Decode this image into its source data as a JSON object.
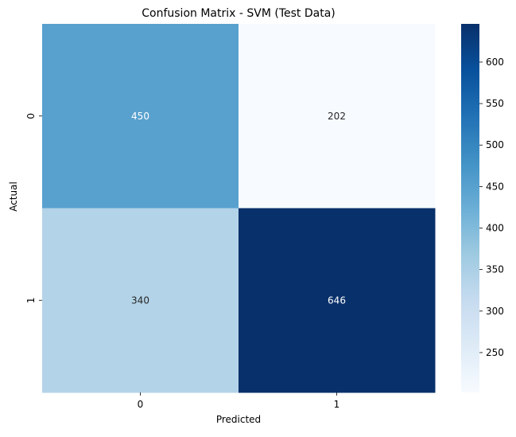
{
  "chart_data": {
    "type": "heatmap",
    "title": "Confusion Matrix - SVM (Test Data)",
    "xlabel": "Predicted",
    "ylabel": "Actual",
    "x_categories": [
      "0",
      "1"
    ],
    "y_categories": [
      "0",
      "1"
    ],
    "values": [
      [
        450,
        202
      ],
      [
        340,
        646
      ]
    ],
    "colormap": "Blues",
    "colorbar": {
      "range": [
        202,
        646
      ],
      "ticks": [
        250,
        300,
        350,
        400,
        450,
        500,
        550,
        600
      ]
    },
    "grid": false
  }
}
